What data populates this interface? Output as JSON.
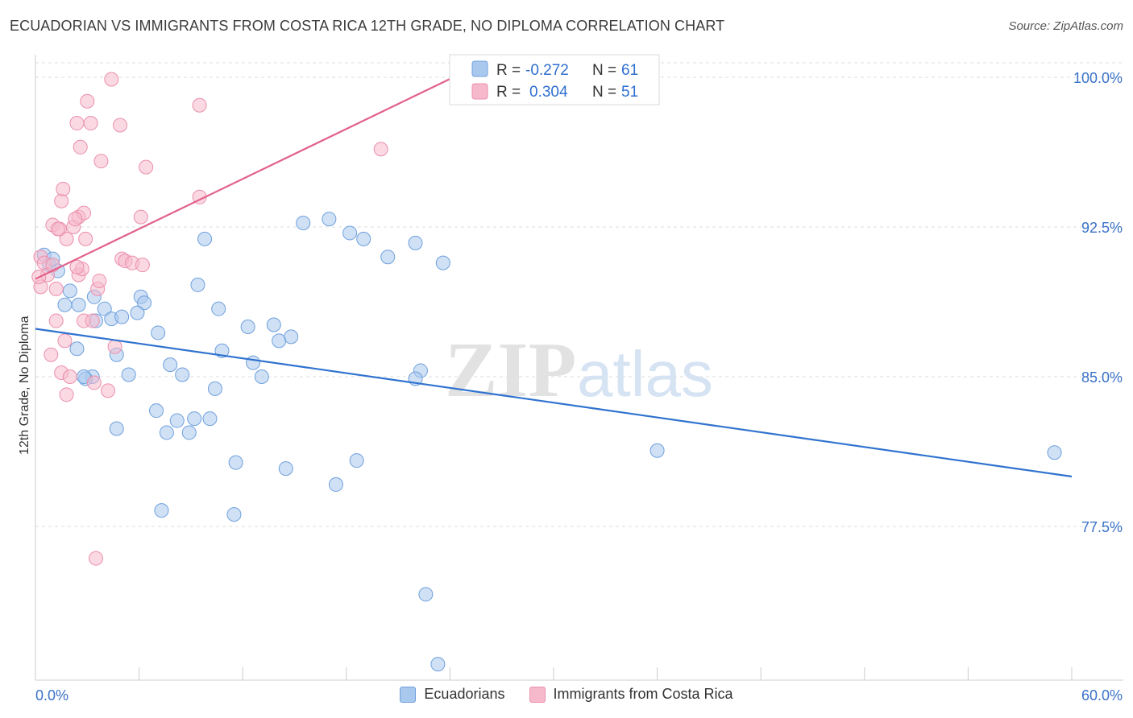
{
  "header": {
    "title": "ECUADORIAN VS IMMIGRANTS FROM COSTA RICA 12TH GRADE, NO DIPLOMA CORRELATION CHART",
    "source": "Source: ZipAtlas.com"
  },
  "colors": {
    "blue_fill": "#a9c8ee",
    "blue_stroke": "#6fa0dc",
    "blue_line": "#2f72cf",
    "pink_fill": "#f6b9cc",
    "pink_stroke": "#ec8fad",
    "pink_line": "#e2618b",
    "tick_label": "#3a72c8",
    "grid": "#dddddd"
  },
  "watermark": {
    "zip": "ZIP",
    "atlas": "atlas"
  },
  "legend_top": {
    "rows": [
      {
        "r_label": "R = ",
        "r_value": "-0.272",
        "n_label": "N = ",
        "n_value": "61"
      },
      {
        "r_label": "R = ",
        "r_value": "0.304",
        "n_label": "N = ",
        "n_value": "51"
      }
    ]
  },
  "chart_data": {
    "type": "scatter",
    "title": "ECUADORIAN VS IMMIGRANTS FROM COSTA RICA 12TH GRADE, NO DIPLOMA CORRELATION CHART",
    "xlabel": "",
    "ylabel": "12th Grade, No Diploma",
    "xlim": [
      0,
      60
    ],
    "ylim": [
      70,
      100.8
    ],
    "x_tick_labels": [
      "0.0%",
      "60.0%"
    ],
    "y_ticks": [
      77.5,
      85.0,
      92.5,
      100.0
    ],
    "y_tick_labels": [
      "77.5%",
      "85.0%",
      "92.5%",
      "100.0%"
    ],
    "grid": "horizontal dashed",
    "legend_position": "bottom-center",
    "series": [
      {
        "name": "Ecuadorians",
        "r": -0.272,
        "n": 61,
        "trend": {
          "x": [
            0,
            60
          ],
          "y": [
            87.4,
            80.0
          ]
        },
        "points": [
          [
            0.5,
            91.1
          ],
          [
            0.8,
            90.6
          ],
          [
            1.0,
            90.9
          ],
          [
            1.3,
            90.3
          ],
          [
            2.0,
            89.3
          ],
          [
            1.7,
            88.6
          ],
          [
            2.5,
            88.6
          ],
          [
            2.4,
            86.4
          ],
          [
            3.3,
            85.0
          ],
          [
            2.9,
            84.9
          ],
          [
            3.4,
            89.0
          ],
          [
            3.5,
            87.8
          ],
          [
            4.0,
            88.4
          ],
          [
            4.4,
            87.9
          ],
          [
            5.0,
            88.0
          ],
          [
            6.1,
            89.0
          ],
          [
            6.3,
            88.7
          ],
          [
            5.9,
            88.2
          ],
          [
            4.7,
            86.1
          ],
          [
            5.4,
            85.1
          ],
          [
            4.7,
            82.4
          ],
          [
            7.1,
            87.2
          ],
          [
            7.8,
            85.6
          ],
          [
            8.5,
            85.1
          ],
          [
            9.4,
            89.6
          ],
          [
            9.8,
            91.9
          ],
          [
            7.0,
            83.3
          ],
          [
            7.6,
            82.2
          ],
          [
            8.2,
            82.8
          ],
          [
            8.9,
            82.2
          ],
          [
            9.2,
            82.9
          ],
          [
            10.1,
            82.9
          ],
          [
            10.4,
            84.4
          ],
          [
            10.6,
            88.4
          ],
          [
            10.8,
            86.3
          ],
          [
            12.3,
            87.5
          ],
          [
            12.6,
            85.7
          ],
          [
            13.1,
            85.0
          ],
          [
            13.8,
            87.6
          ],
          [
            14.1,
            86.8
          ],
          [
            14.8,
            87.0
          ],
          [
            15.5,
            92.7
          ],
          [
            17.0,
            92.9
          ],
          [
            18.2,
            92.2
          ],
          [
            19.0,
            91.9
          ],
          [
            20.4,
            91.0
          ],
          [
            22.0,
            91.7
          ],
          [
            23.6,
            90.7
          ],
          [
            22.3,
            85.3
          ],
          [
            22.0,
            84.9
          ],
          [
            11.6,
            80.7
          ],
          [
            14.5,
            80.4
          ],
          [
            17.4,
            79.6
          ],
          [
            18.6,
            80.8
          ],
          [
            7.3,
            78.3
          ],
          [
            11.5,
            78.1
          ],
          [
            22.6,
            74.1
          ],
          [
            23.3,
            70.6
          ],
          [
            36.0,
            81.3
          ],
          [
            59.0,
            81.2
          ],
          [
            2.8,
            85.0
          ]
        ]
      },
      {
        "name": "Immigrants from Costa Rica",
        "r": 0.304,
        "n": 51,
        "trend": {
          "x": [
            0,
            24.2
          ],
          "y": [
            89.9,
            100.0
          ]
        },
        "points": [
          [
            0.3,
            91.0
          ],
          [
            0.5,
            90.7
          ],
          [
            0.3,
            89.5
          ],
          [
            0.7,
            90.1
          ],
          [
            1.0,
            90.6
          ],
          [
            1.2,
            89.4
          ],
          [
            0.9,
            86.1
          ],
          [
            1.2,
            87.8
          ],
          [
            1.5,
            85.2
          ],
          [
            1.8,
            84.1
          ],
          [
            2.0,
            85.0
          ],
          [
            1.7,
            86.8
          ],
          [
            2.5,
            90.1
          ],
          [
            2.7,
            90.4
          ],
          [
            2.8,
            87.8
          ],
          [
            3.3,
            87.8
          ],
          [
            3.4,
            84.7
          ],
          [
            3.6,
            89.4
          ],
          [
            4.2,
            84.3
          ],
          [
            4.6,
            86.5
          ],
          [
            5.0,
            90.9
          ],
          [
            5.2,
            90.8
          ],
          [
            5.6,
            90.7
          ],
          [
            6.2,
            90.6
          ],
          [
            6.1,
            93.0
          ],
          [
            6.4,
            95.5
          ],
          [
            1.0,
            92.6
          ],
          [
            1.4,
            92.4
          ],
          [
            1.5,
            93.8
          ],
          [
            1.6,
            94.4
          ],
          [
            1.8,
            91.9
          ],
          [
            2.2,
            92.5
          ],
          [
            2.5,
            93.0
          ],
          [
            2.8,
            93.2
          ],
          [
            2.9,
            91.9
          ],
          [
            2.4,
            97.7
          ],
          [
            2.6,
            96.5
          ],
          [
            3.2,
            97.7
          ],
          [
            3.0,
            98.8
          ],
          [
            3.8,
            95.8
          ],
          [
            4.4,
            99.9
          ],
          [
            4.9,
            97.6
          ],
          [
            9.5,
            98.6
          ],
          [
            9.5,
            94.0
          ],
          [
            20.0,
            96.4
          ],
          [
            3.5,
            75.9
          ],
          [
            2.3,
            92.9
          ],
          [
            0.2,
            90.0
          ],
          [
            2.4,
            90.5
          ],
          [
            3.7,
            89.8
          ],
          [
            1.3,
            92.4
          ]
        ]
      }
    ]
  }
}
